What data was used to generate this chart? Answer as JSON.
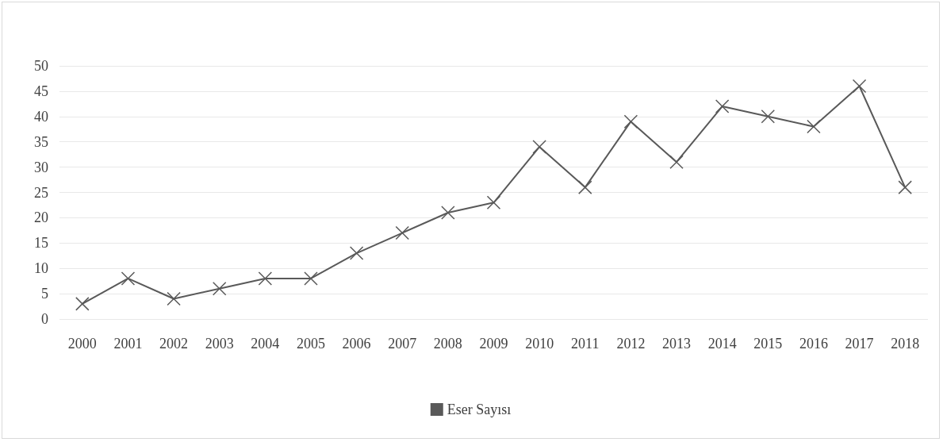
{
  "chart_data": {
    "type": "line",
    "categories": [
      "2000",
      "2001",
      "2002",
      "2003",
      "2004",
      "2005",
      "2006",
      "2007",
      "2008",
      "2009",
      "2010",
      "2011",
      "2012",
      "2013",
      "2014",
      "2015",
      "2016",
      "2017",
      "2018"
    ],
    "series": [
      {
        "name": "Eser Sayısı",
        "color": "#595959",
        "values": [
          3,
          8,
          4,
          6,
          8,
          8,
          13,
          17,
          21,
          23,
          34,
          26,
          39,
          31,
          42,
          40,
          38,
          46,
          26
        ]
      }
    ],
    "ylim": [
      0,
      50
    ],
    "yticks": [
      0,
      5,
      10,
      15,
      20,
      25,
      30,
      35,
      40,
      45,
      50
    ],
    "grid": "y",
    "legend": "bottom",
    "marker": "cross",
    "line_style": "solid"
  }
}
